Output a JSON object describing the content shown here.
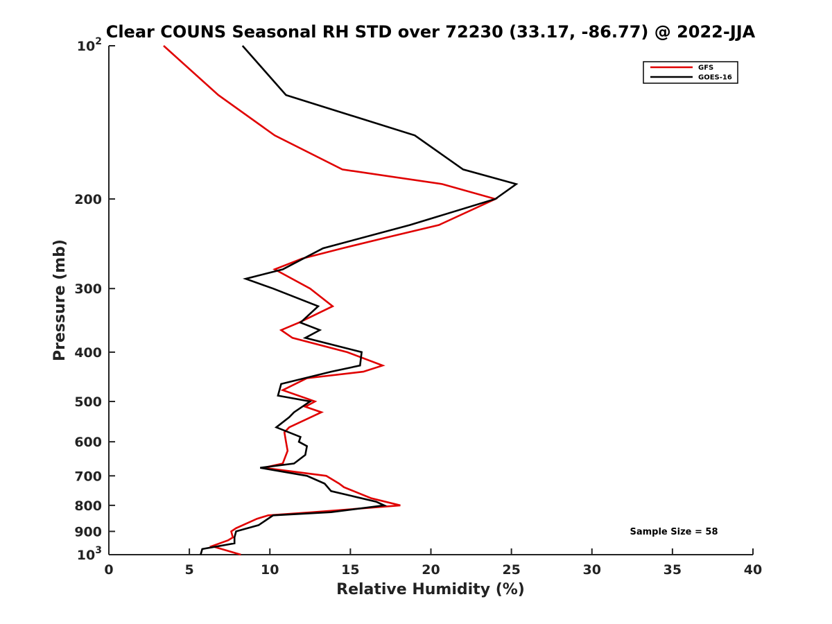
{
  "chart_data": {
    "type": "line",
    "title": "Clear COUNS Seasonal RH STD over 72230 (33.17, -86.77) @ 2022-JJA",
    "xlabel": "Relative Humidity (%)",
    "ylabel": "Pressure (mb)",
    "xlim": [
      0,
      40
    ],
    "ylim": [
      1000,
      100
    ],
    "yscale": "log",
    "x_ticks": [
      0,
      5,
      10,
      15,
      20,
      25,
      30,
      35,
      40
    ],
    "y_ticks": [
      {
        "value": 100,
        "base": "10",
        "exp": "2"
      },
      {
        "value": 200,
        "label": "200"
      },
      {
        "value": 300,
        "label": "300"
      },
      {
        "value": 400,
        "label": "400"
      },
      {
        "value": 500,
        "label": "500"
      },
      {
        "value": 600,
        "label": "600"
      },
      {
        "value": 700,
        "label": "700"
      },
      {
        "value": 800,
        "label": "800"
      },
      {
        "value": 900,
        "label": "900"
      },
      {
        "value": 1000,
        "base": "10",
        "exp": "3"
      }
    ],
    "legend_position": "top-right",
    "annotation": "Sample Size = 58",
    "series": [
      {
        "name": "GFS",
        "color": "#e00000",
        "points": [
          [
            3.4,
            100
          ],
          [
            6.8,
            125
          ],
          [
            10.3,
            150
          ],
          [
            14.5,
            175
          ],
          [
            20.7,
            187
          ],
          [
            24.0,
            200
          ],
          [
            20.5,
            225
          ],
          [
            17.5,
            237
          ],
          [
            14.5,
            250
          ],
          [
            12.0,
            262
          ],
          [
            10.3,
            275
          ],
          [
            12.5,
            300
          ],
          [
            13.9,
            325
          ],
          [
            11.8,
            350
          ],
          [
            10.7,
            362
          ],
          [
            11.4,
            375
          ],
          [
            14.8,
            400
          ],
          [
            17.0,
            425
          ],
          [
            15.8,
            437
          ],
          [
            12.3,
            450
          ],
          [
            10.8,
            475
          ],
          [
            12.8,
            500
          ],
          [
            12.2,
            512
          ],
          [
            13.2,
            525
          ],
          [
            11.2,
            562
          ],
          [
            10.9,
            575
          ],
          [
            11.0,
            600
          ],
          [
            11.1,
            625
          ],
          [
            10.8,
            662
          ],
          [
            9.6,
            675
          ],
          [
            13.5,
            700
          ],
          [
            14.3,
            725
          ],
          [
            14.6,
            737
          ],
          [
            16.3,
            775
          ],
          [
            18.1,
            800
          ],
          [
            12.7,
            825
          ],
          [
            9.9,
            837
          ],
          [
            9.2,
            850
          ],
          [
            7.9,
            887
          ],
          [
            7.6,
            900
          ],
          [
            7.7,
            925
          ],
          [
            7.4,
            937
          ],
          [
            6.4,
            962
          ],
          [
            8.2,
            1000
          ]
        ]
      },
      {
        "name": "GOES-16",
        "color": "#000000",
        "points": [
          [
            8.3,
            100
          ],
          [
            11.0,
            125
          ],
          [
            19.0,
            150
          ],
          [
            22.0,
            175
          ],
          [
            25.3,
            187
          ],
          [
            24.0,
            200
          ],
          [
            18.7,
            225
          ],
          [
            13.3,
            250
          ],
          [
            10.8,
            275
          ],
          [
            8.5,
            287
          ],
          [
            10.2,
            300
          ],
          [
            13.0,
            325
          ],
          [
            11.9,
            350
          ],
          [
            13.1,
            362
          ],
          [
            12.2,
            375
          ],
          [
            15.7,
            400
          ],
          [
            15.6,
            425
          ],
          [
            13.8,
            437
          ],
          [
            10.7,
            462
          ],
          [
            10.5,
            487
          ],
          [
            12.5,
            500
          ],
          [
            11.5,
            525
          ],
          [
            11.2,
            537
          ],
          [
            10.4,
            562
          ],
          [
            11.9,
            587
          ],
          [
            11.8,
            600
          ],
          [
            12.3,
            612
          ],
          [
            12.2,
            637
          ],
          [
            11.5,
            662
          ],
          [
            9.4,
            675
          ],
          [
            12.3,
            700
          ],
          [
            13.4,
            725
          ],
          [
            13.8,
            750
          ],
          [
            16.6,
            787
          ],
          [
            17.1,
            800
          ],
          [
            13.8,
            825
          ],
          [
            10.2,
            837
          ],
          [
            9.3,
            875
          ],
          [
            7.9,
            900
          ],
          [
            7.8,
            925
          ],
          [
            7.8,
            950
          ],
          [
            5.8,
            975
          ],
          [
            5.7,
            1000
          ]
        ]
      }
    ]
  }
}
